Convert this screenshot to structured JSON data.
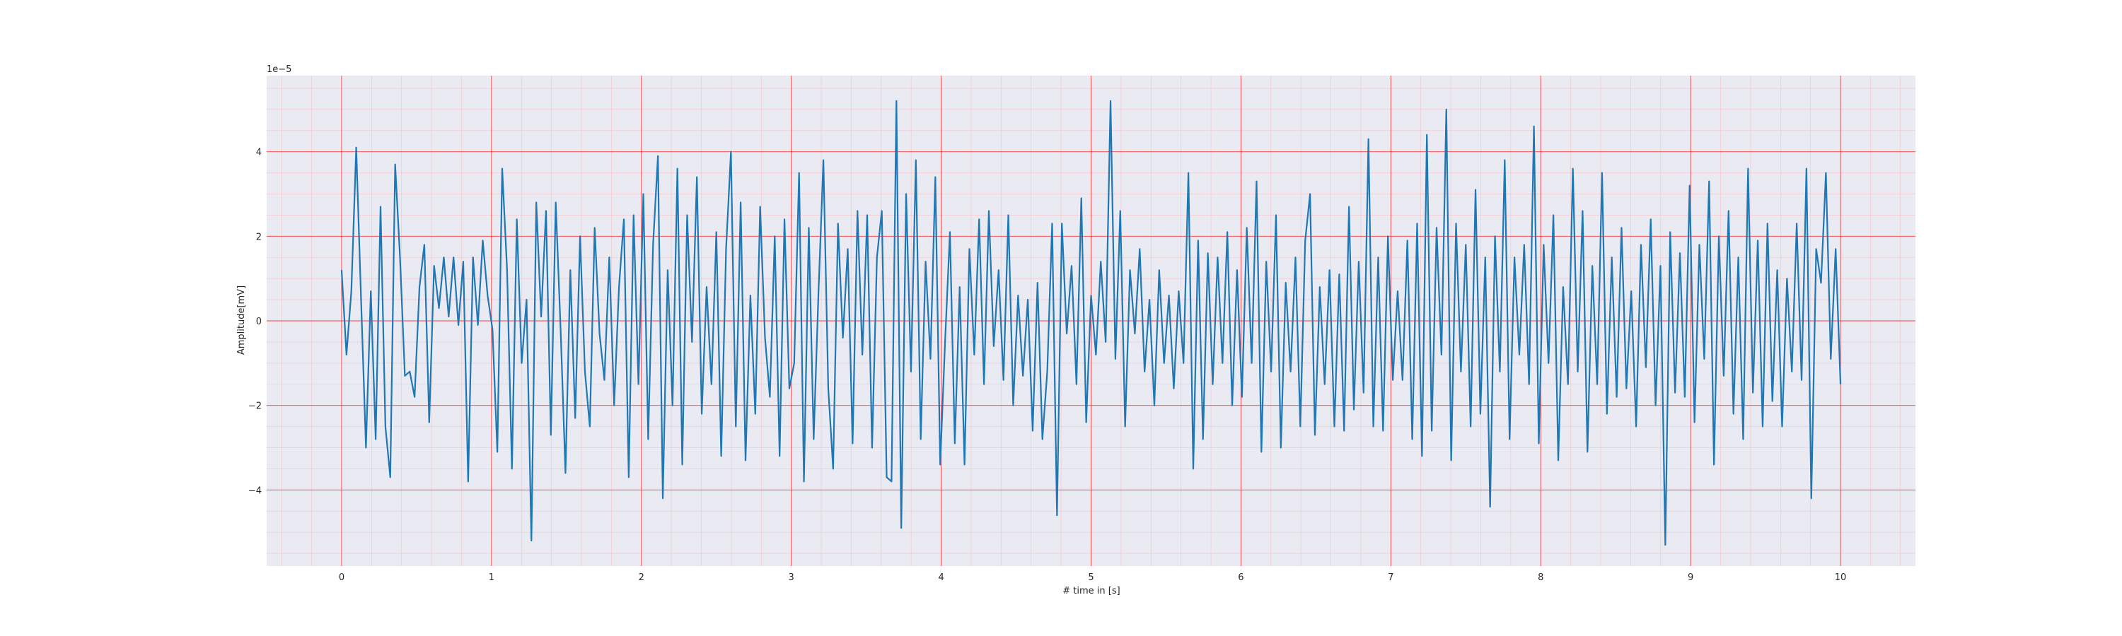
{
  "chart_data": {
    "type": "line",
    "title": "",
    "xlabel": "# time in [s]",
    "ylabel": "Amplitude[mV]",
    "y_offset_text": "1e−5",
    "y_scale": 1e-05,
    "xlim": [
      -0.5,
      10.5
    ],
    "ylim": [
      -5.8,
      5.8
    ],
    "x_ticks": [
      0,
      1,
      2,
      3,
      4,
      5,
      6,
      7,
      8,
      9,
      10
    ],
    "x_tick_labels": [
      "0",
      "1",
      "2",
      "3",
      "4",
      "5",
      "6",
      "7",
      "8",
      "9",
      "10"
    ],
    "y_ticks": [
      -4,
      -2,
      0,
      2,
      4
    ],
    "y_tick_labels": [
      "−4",
      "−2",
      "0",
      "2",
      "4"
    ],
    "grid": "on",
    "minor_grid": "on",
    "legend": "none",
    "background_color": "#eaeaf2",
    "major_grid_color": "#ff0000",
    "minor_grid_color": "#ff9a9a",
    "line_color": "#1f77b4",
    "series": [
      {
        "x_start": 0,
        "x_end": 10,
        "values": [
          1.2,
          -0.8,
          0.7,
          4.1,
          0.5,
          -3.0,
          0.7,
          -2.8,
          2.7,
          -2.5,
          -3.7,
          3.7,
          1.5,
          -1.3,
          -1.2,
          -1.8,
          0.8,
          1.8,
          -2.4,
          1.3,
          0.3,
          1.5,
          0.1,
          1.5,
          -0.1,
          1.4,
          -3.8,
          1.5,
          -0.1,
          1.9,
          0.6,
          -0.2,
          -3.1,
          3.6,
          1.2,
          -3.5,
          2.4,
          -1.0,
          0.5,
          -5.2,
          2.8,
          0.1,
          2.6,
          -2.7,
          2.8,
          -0.2,
          -3.6,
          1.2,
          -2.3,
          2.0,
          -1.2,
          -2.5,
          2.2,
          -0.3,
          -1.4,
          1.5,
          -2.0,
          0.8,
          2.4,
          -3.7,
          2.5,
          -1.5,
          3.0,
          -2.8,
          1.8,
          3.9,
          -4.2,
          1.2,
          -2.0,
          3.6,
          -3.4,
          2.5,
          -0.5,
          3.4,
          -2.2,
          0.8,
          -1.5,
          2.1,
          -3.2,
          1.7,
          4.0,
          -2.5,
          2.8,
          -3.3,
          0.6,
          -2.2,
          2.7,
          -0.4,
          -1.8,
          2.0,
          -3.2,
          2.4,
          -1.6,
          -1.0,
          3.5,
          -3.8,
          2.2,
          -2.8,
          0.7,
          3.8,
          -1.6,
          -3.5,
          2.3,
          -0.4,
          1.7,
          -2.9,
          2.6,
          -0.8,
          2.5,
          -3.0,
          1.5,
          2.6,
          -3.7,
          -3.8,
          5.2,
          -4.9,
          3.0,
          -1.2,
          3.8,
          -2.8,
          1.4,
          -0.9,
          3.4,
          -3.4,
          -0.5,
          2.1,
          -2.9,
          0.8,
          -3.4,
          1.7,
          -0.8,
          2.4,
          -1.5,
          2.6,
          -0.6,
          1.2,
          -1.4,
          2.5,
          -2.0,
          0.6,
          -1.3,
          0.5,
          -2.6,
          0.9,
          -2.8,
          -1.2,
          2.3,
          -4.6,
          2.3,
          -0.3,
          1.3,
          -1.5,
          2.9,
          -2.4,
          0.6,
          -0.8,
          1.4,
          -0.5,
          5.2,
          -0.9,
          2.6,
          -2.5,
          1.2,
          -0.3,
          1.7,
          -1.2,
          0.5,
          -2.0,
          1.2,
          -1.0,
          0.6,
          -1.6,
          0.7,
          -1.0,
          3.5,
          -3.5,
          1.9,
          -2.8,
          1.6,
          -1.5,
          1.5,
          -1.0,
          2.1,
          -2.0,
          1.2,
          -1.8,
          2.2,
          -1.0,
          3.3,
          -3.1,
          1.4,
          -1.2,
          2.5,
          -3.0,
          0.9,
          -1.2,
          1.5,
          -2.5,
          1.9,
          3.0,
          -2.7,
          0.8,
          -1.5,
          1.2,
          -2.5,
          1.1,
          -2.6,
          2.7,
          -2.1,
          1.4,
          -1.7,
          4.3,
          -2.5,
          1.5,
          -2.6,
          2.0,
          -1.4,
          0.7,
          -1.4,
          1.9,
          -2.8,
          2.3,
          -3.2,
          4.4,
          -2.6,
          2.2,
          -0.8,
          5.0,
          -3.3,
          2.3,
          -1.2,
          1.8,
          -2.5,
          3.1,
          -2.2,
          1.5,
          -4.4,
          2.0,
          -1.2,
          3.8,
          -2.8,
          1.5,
          -0.8,
          1.8,
          -1.5,
          4.6,
          -2.9,
          1.8,
          -1.0,
          2.5,
          -3.3,
          0.8,
          -1.5,
          3.6,
          -1.2,
          2.6,
          -3.1,
          1.3,
          -1.5,
          3.5,
          -2.2,
          1.5,
          -1.8,
          2.2,
          -1.6,
          0.7,
          -2.5,
          1.8,
          -1.1,
          2.4,
          -2.0,
          1.3,
          -5.3,
          2.1,
          -1.7,
          1.6,
          -1.8,
          3.2,
          -2.4,
          1.8,
          -0.9,
          3.3,
          -3.4,
          2.0,
          -1.3,
          2.6,
          -2.2,
          1.5,
          -2.8,
          3.6,
          -1.7,
          1.9,
          -2.5,
          2.3,
          -1.9,
          1.2,
          -2.5,
          1.0,
          -1.2,
          2.3,
          -1.4,
          3.6,
          -4.2,
          1.7,
          0.9,
          3.5,
          -0.9,
          1.7,
          -1.5
        ]
      }
    ]
  }
}
